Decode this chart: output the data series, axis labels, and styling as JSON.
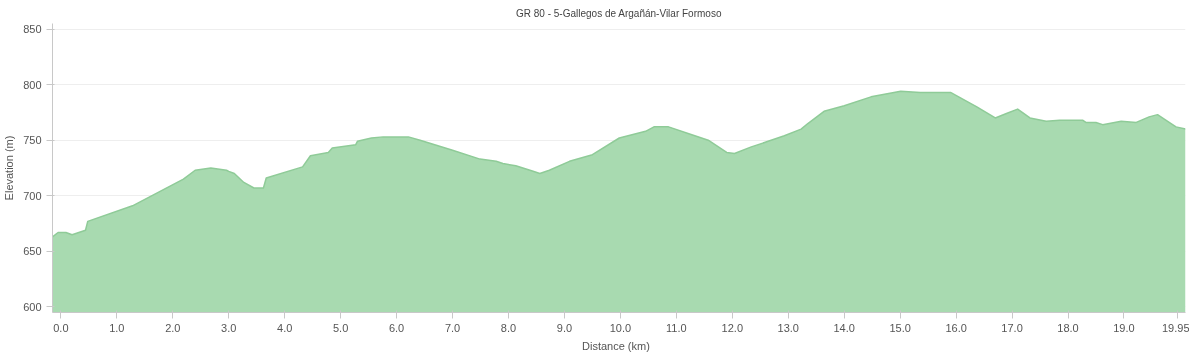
{
  "chart_data": {
    "type": "area",
    "title": "GR 80 - 5-Gallegos de Argañán-Vilar Formoso",
    "xlabel": "Distance   (km)",
    "ylabel": "Elevation (m)",
    "x": [
      -0.15,
      -0.05,
      0.09,
      0.2,
      0.44,
      0.48,
      1.28,
      2.19,
      2.4,
      2.68,
      2.96,
      3.0,
      3.1,
      3.27,
      3.45,
      3.62,
      3.67,
      4.32,
      4.46,
      4.78,
      4.85,
      5.27,
      5.3,
      5.55,
      5.76,
      6.21,
      6.42,
      7.0,
      7.49,
      7.78,
      7.9,
      8.13,
      8.44,
      8.56,
      8.73,
      9.09,
      9.5,
      9.98,
      10.45,
      10.6,
      10.86,
      11.33,
      11.57,
      11.9,
      12.04,
      12.34,
      12.64,
      12.93,
      13.23,
      13.35,
      13.64,
      14.0,
      14.48,
      15.01,
      15.36,
      15.9,
      16.37,
      16.7,
      16.9,
      17.1,
      17.32,
      17.61,
      17.85,
      18.26,
      18.32,
      18.5,
      18.62,
      18.95,
      19.22,
      19.45,
      19.6,
      19.93,
      20.1
    ],
    "series": [
      {
        "color": "#a8dab0",
        "values": [
          663,
          667,
          667,
          665,
          669,
          677,
          691,
          715,
          723,
          725,
          723,
          722,
          720,
          712,
          707,
          707,
          716,
          726,
          736,
          739,
          743,
          746,
          749,
          752,
          753,
          753,
          750,
          741,
          733,
          731,
          729,
          727,
          722,
          720,
          723,
          731,
          737,
          752,
          758,
          762,
          762,
          754,
          750,
          739,
          738,
          744,
          749,
          754,
          760,
          765,
          776,
          781,
          789,
          794,
          793,
          793,
          780,
          770,
          774,
          778,
          770,
          767,
          768,
          768,
          766,
          766,
          764,
          767,
          766,
          771,
          773,
          762,
          760
        ]
      }
    ],
    "xlim": [
      -0.15,
      20.1
    ],
    "ylim": [
      595,
      855
    ],
    "xticks": [
      {
        "value": 0,
        "label": "0.0"
      },
      {
        "value": 1,
        "label": "1.0"
      },
      {
        "value": 2,
        "label": "2.0"
      },
      {
        "value": 3,
        "label": "3.0"
      },
      {
        "value": 4,
        "label": "4.0"
      },
      {
        "value": 5,
        "label": "5.0"
      },
      {
        "value": 6,
        "label": "6.0"
      },
      {
        "value": 7,
        "label": "7.0"
      },
      {
        "value": 8,
        "label": "8.0"
      },
      {
        "value": 9,
        "label": "9.0"
      },
      {
        "value": 10,
        "label": "10.0"
      },
      {
        "value": 11,
        "label": "11.0"
      },
      {
        "value": 12,
        "label": "12.0"
      },
      {
        "value": 13,
        "label": "13.0"
      },
      {
        "value": 14,
        "label": "14.0"
      },
      {
        "value": 15,
        "label": "15.0"
      },
      {
        "value": 16,
        "label": "16.0"
      },
      {
        "value": 17,
        "label": "17.0"
      },
      {
        "value": 18,
        "label": "18.0"
      },
      {
        "value": 19,
        "label": "19.0"
      },
      {
        "value": 19.95,
        "label": "19.95"
      }
    ],
    "yticks": [
      600,
      650,
      700,
      750,
      800,
      850
    ],
    "grid": "y"
  }
}
